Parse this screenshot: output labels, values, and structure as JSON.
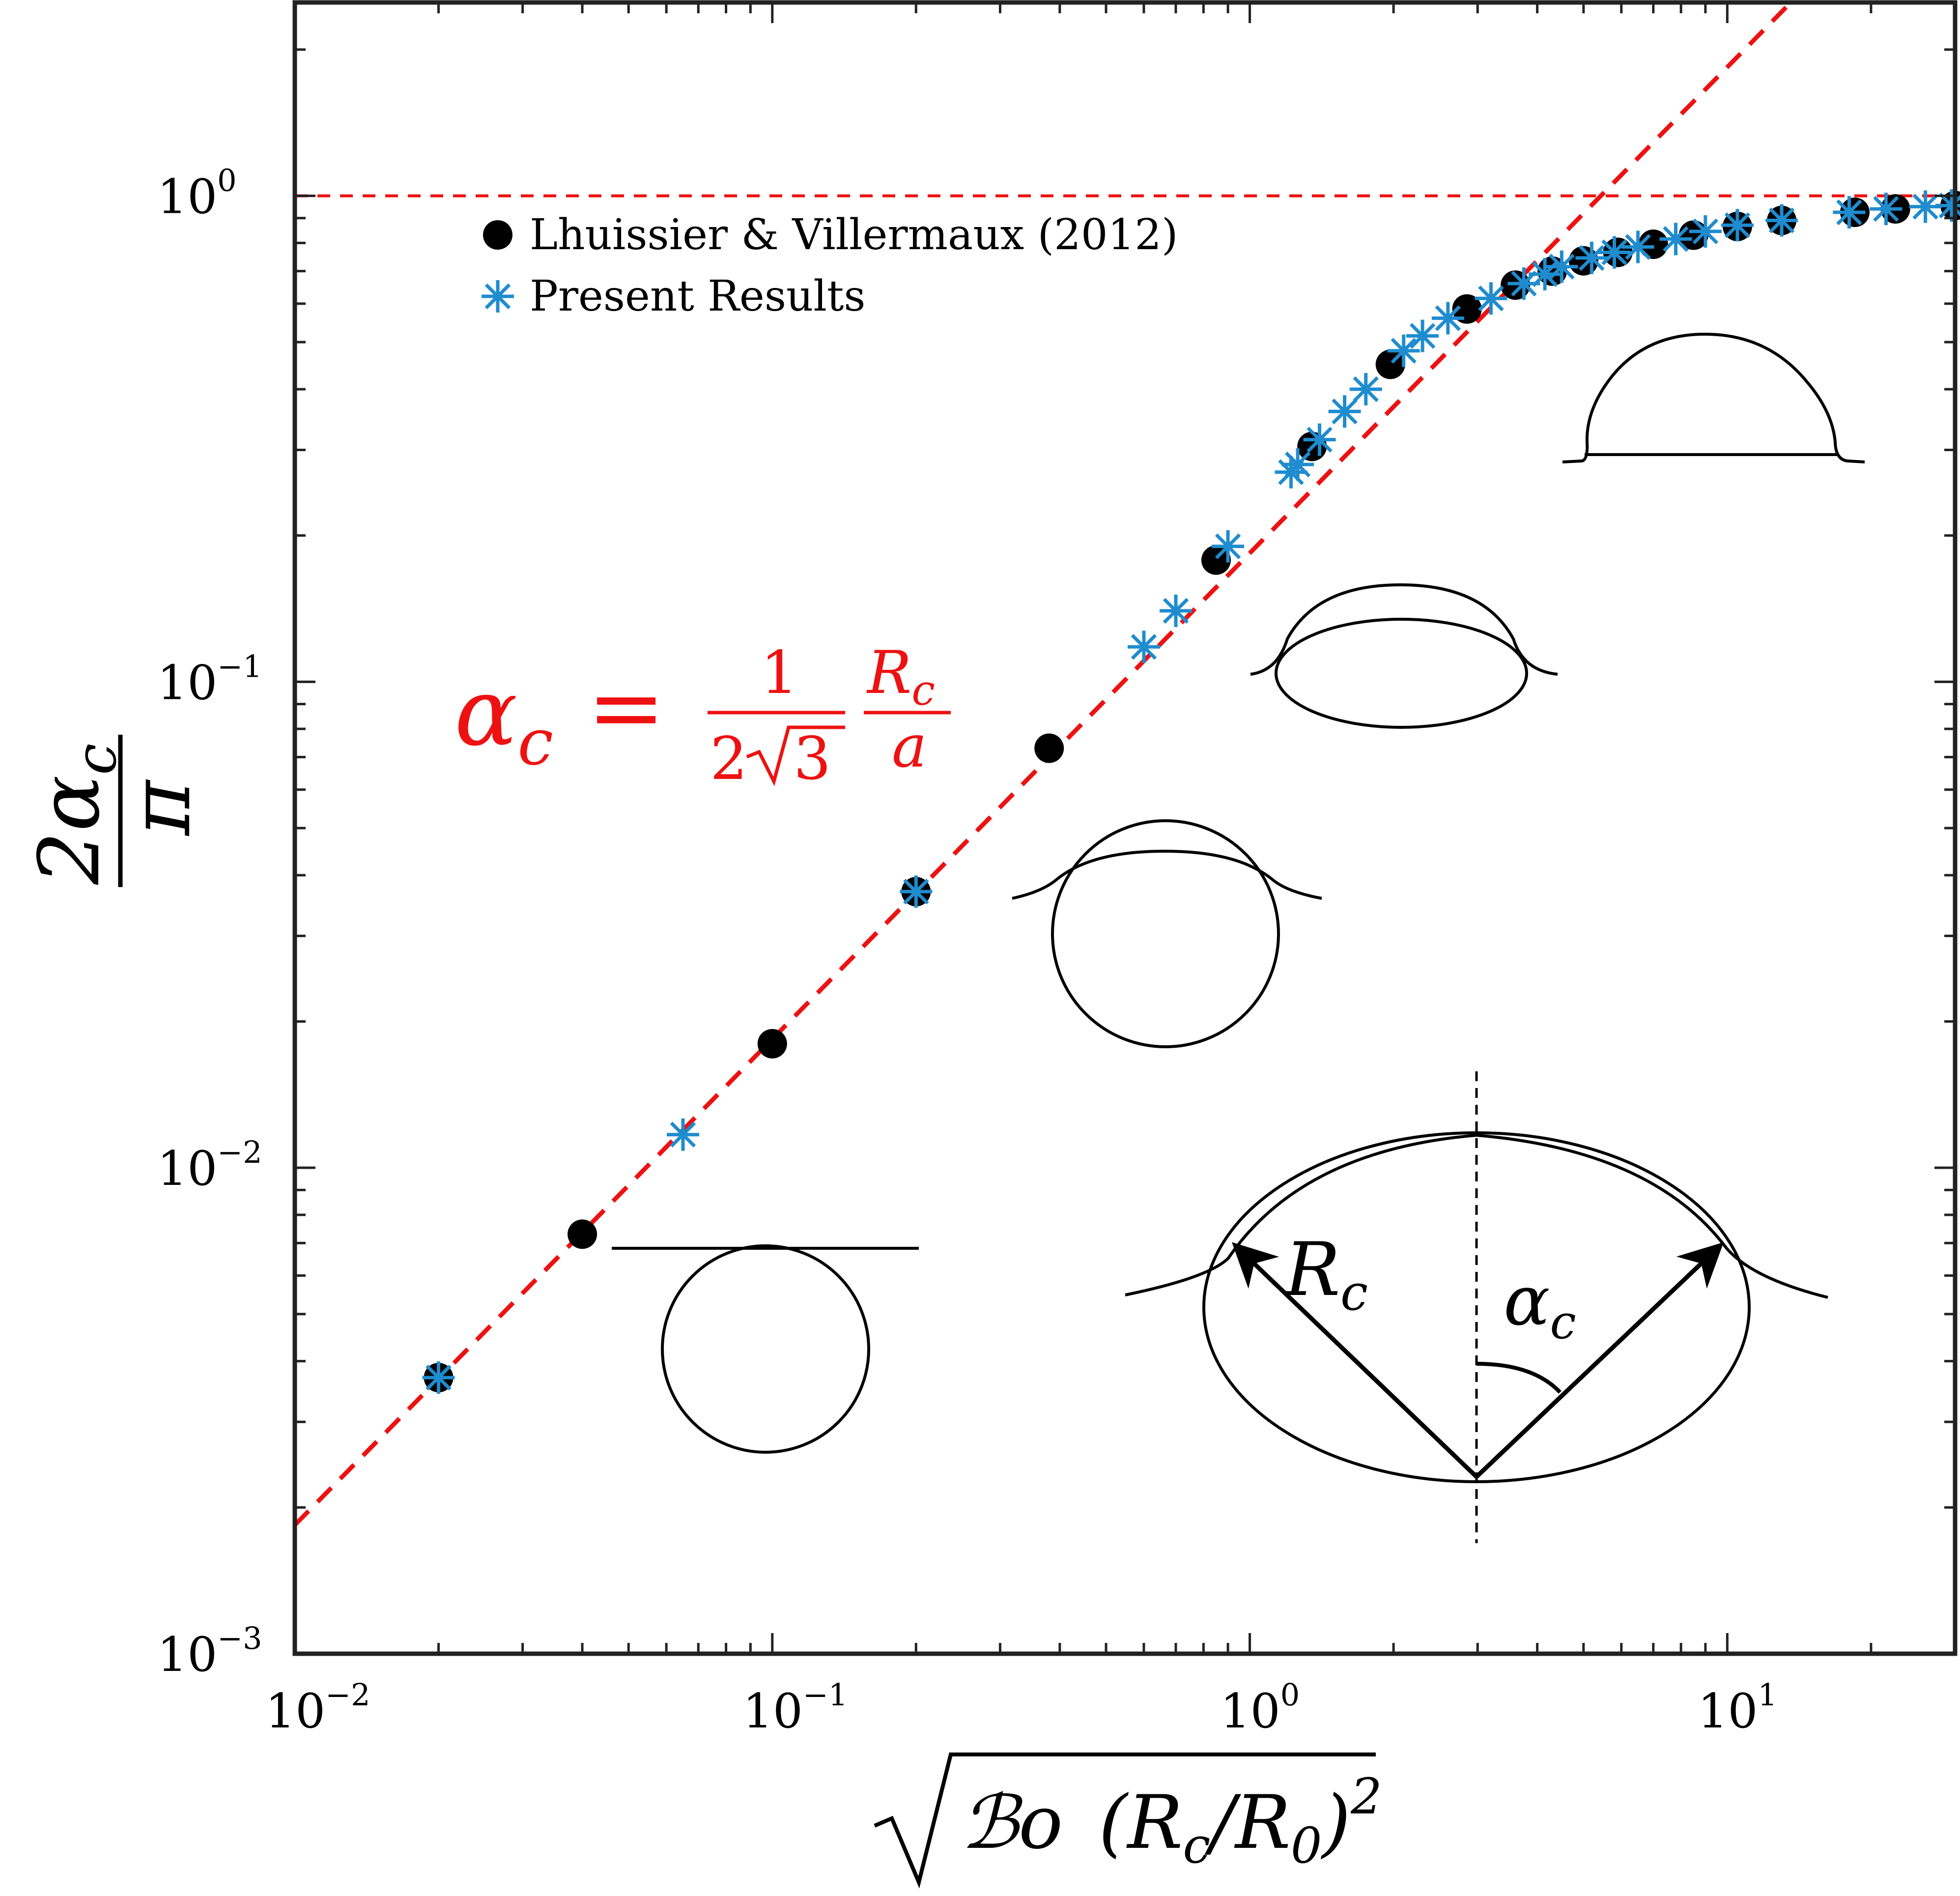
{
  "chart_data": {
    "type": "scatter",
    "x_scale": "log",
    "y_scale": "log",
    "xlim": [
      0.01,
      30
    ],
    "ylim": [
      0.001,
      2.5
    ],
    "xlabel": "√(ℬο (Rc/R0)²)",
    "ylabel": "2αc / π",
    "xlabel_parts": {
      "bo": "ℬo",
      "lparen": "(",
      "rc": "R",
      "rc_sub": "c",
      "slash": "/",
      "r0": "R",
      "r0_sub": "0",
      "rparen": ")",
      "sq": "2"
    },
    "ylabel_parts": {
      "numer": "2α",
      "numer_sub": "c",
      "denom": "π"
    },
    "x_ticks": [
      {
        "value": 0.01,
        "base": "10",
        "exp": "−2"
      },
      {
        "value": 0.1,
        "base": "10",
        "exp": "−1"
      },
      {
        "value": 1,
        "base": "10",
        "exp": "0"
      },
      {
        "value": 10,
        "base": "10",
        "exp": "1"
      }
    ],
    "y_ticks": [
      {
        "value": 0.001,
        "base": "10",
        "exp": "−3"
      },
      {
        "value": 0.01,
        "base": "10",
        "exp": "−2"
      },
      {
        "value": 0.1,
        "base": "10",
        "exp": "−1"
      },
      {
        "value": 1,
        "base": "10",
        "exp": "0"
      }
    ],
    "series": [
      {
        "name": "Lhuissier & Villermaux (2012)",
        "marker": "filled-circle",
        "color": "#000000",
        "points": [
          [
            0.02,
            0.0037
          ],
          [
            0.04,
            0.0073
          ],
          [
            0.1,
            0.018
          ],
          [
            0.2,
            0.037
          ],
          [
            0.38,
            0.073
          ],
          [
            0.85,
            0.178
          ],
          [
            1.35,
            0.305
          ],
          [
            1.97,
            0.45
          ],
          [
            2.85,
            0.585
          ],
          [
            3.6,
            0.655
          ],
          [
            4.3,
            0.7
          ],
          [
            5.0,
            0.735
          ],
          [
            5.9,
            0.765
          ],
          [
            7.0,
            0.795
          ],
          [
            8.5,
            0.83
          ],
          [
            10.5,
            0.865
          ],
          [
            13.0,
            0.89
          ],
          [
            18.5,
            0.925
          ],
          [
            22.5,
            0.94
          ],
          [
            30.0,
            0.955
          ]
        ]
      },
      {
        "name": "Present Results",
        "marker": "asterisk",
        "color": "#1f8ccf",
        "points": [
          [
            0.02,
            0.0037
          ],
          [
            0.065,
            0.0117
          ],
          [
            0.2,
            0.037
          ],
          [
            0.6,
            0.118
          ],
          [
            0.7,
            0.14
          ],
          [
            0.9,
            0.19
          ],
          [
            1.22,
            0.27
          ],
          [
            1.26,
            0.28
          ],
          [
            1.4,
            0.315
          ],
          [
            1.58,
            0.36
          ],
          [
            1.75,
            0.4
          ],
          [
            2.1,
            0.48
          ],
          [
            2.3,
            0.515
          ],
          [
            2.6,
            0.56
          ],
          [
            3.2,
            0.615
          ],
          [
            3.75,
            0.66
          ],
          [
            4.15,
            0.69
          ],
          [
            4.5,
            0.715
          ],
          [
            5.2,
            0.745
          ],
          [
            5.8,
            0.765
          ],
          [
            6.5,
            0.785
          ],
          [
            7.8,
            0.815
          ],
          [
            9.0,
            0.845
          ],
          [
            10.5,
            0.87
          ],
          [
            13.0,
            0.89
          ],
          [
            18.0,
            0.925
          ],
          [
            21.5,
            0.94
          ],
          [
            26.0,
            0.95
          ],
          [
            29.5,
            0.955
          ]
        ]
      }
    ],
    "reference_lines": [
      {
        "name": "linear-fit",
        "style": "dashed",
        "color": "#ee1111",
        "coefficient": 0.184,
        "description": "y = 0.184 x"
      },
      {
        "name": "plateau",
        "style": "dashed",
        "color": "#ee1111",
        "y": 1.0
      }
    ],
    "legend": {
      "position": "top-left",
      "entries": [
        "Lhuissier & Villermaux (2012)",
        "Present Results"
      ]
    },
    "annotation": {
      "color": "#ee1111",
      "lhs": "α",
      "lhs_sub": "c",
      "equals": "=",
      "frac1_num": "1",
      "frac1_den_two": "2",
      "frac1_den_root": "3",
      "frac2_num": "R",
      "frac2_num_sub": "c",
      "frac2_den": "a"
    },
    "inset": {
      "radius_label": "R",
      "radius_label_sub": "c",
      "angle_label": "α",
      "angle_label_sub": "c"
    }
  }
}
